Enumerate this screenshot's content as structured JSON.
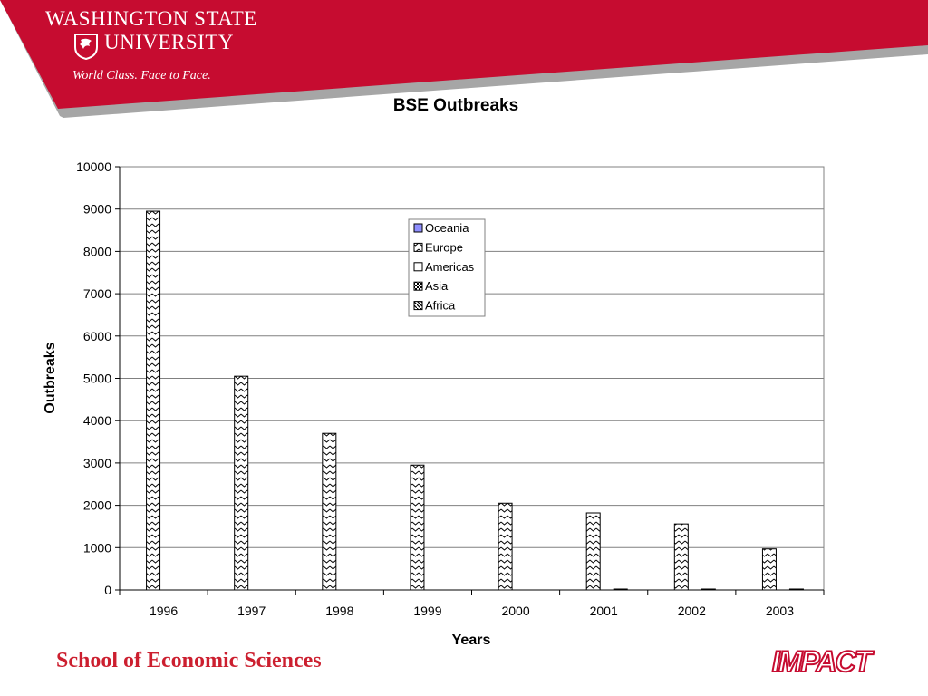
{
  "header": {
    "university_line1": "WASHINGTON STATE",
    "university_line2": "UNIVERSITY",
    "tagline": "World Class. Face to Face.",
    "brand_color": "#c60c30",
    "shadow_color": "#a6a6a6",
    "seal_icon": "wsu-cougar-seal-icon"
  },
  "footer": {
    "school": "School of Economic Sciences",
    "school_color": "#cc1f2f",
    "impact_logo_text": "IMPACT",
    "impact_logo_icon": "impact-logo-icon"
  },
  "chart_data": {
    "type": "bar",
    "title": "BSE Outbreaks",
    "xlabel": "Years",
    "ylabel": "Outbreaks",
    "categories": [
      "1996",
      "1997",
      "1998",
      "1999",
      "2000",
      "2001",
      "2002",
      "2003"
    ],
    "ylim": [
      0,
      10000
    ],
    "yticks": [
      0,
      1000,
      2000,
      3000,
      4000,
      5000,
      6000,
      7000,
      8000,
      9000,
      10000
    ],
    "grid": true,
    "legend_position": "top-center",
    "series": [
      {
        "name": "Oceania",
        "values": [
          0,
          0,
          0,
          0,
          0,
          0,
          0,
          0
        ],
        "fill": "#8f8fff",
        "pattern": "solid"
      },
      {
        "name": "Europe",
        "values": [
          8950,
          5050,
          3700,
          2950,
          2050,
          1820,
          1560,
          970
        ],
        "fill": "#ffffff",
        "pattern": "zigzag"
      },
      {
        "name": "Americas",
        "values": [
          0,
          0,
          0,
          0,
          0,
          0,
          0,
          0
        ],
        "fill": "#ffffff",
        "pattern": "solid"
      },
      {
        "name": "Asia",
        "values": [
          0,
          0,
          0,
          0,
          0,
          12,
          12,
          12
        ],
        "fill": "#ffffff",
        "pattern": "checker"
      },
      {
        "name": "Africa",
        "values": [
          0,
          0,
          0,
          0,
          0,
          0,
          0,
          0
        ],
        "fill": "#ffffff",
        "pattern": "diagonal"
      }
    ]
  }
}
